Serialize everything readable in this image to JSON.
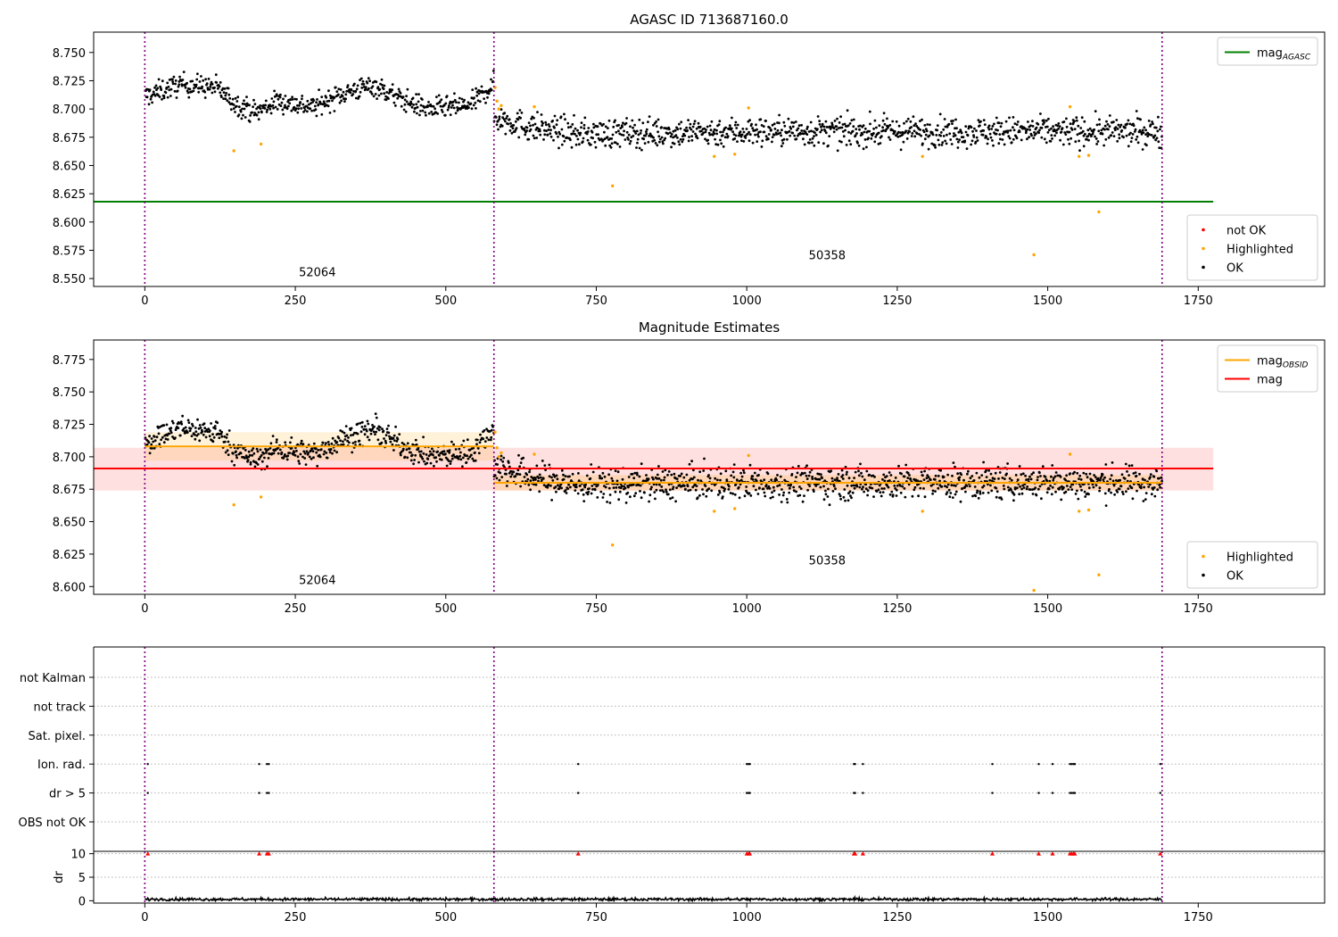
{
  "figure": {
    "title": "AGASC ID 713687160.0"
  },
  "colors": {
    "ok": "#000000",
    "highlighted": "#ffa500",
    "not_ok": "#ff0000",
    "mag_agasc": "#008000",
    "mag": "#ff0000",
    "mag_obsid": "#ffa500",
    "obs_boundary": "#800080",
    "gridline": "#b0b0b0"
  },
  "chart_data": [
    {
      "id": "agasc",
      "type": "scatter",
      "title": "AGASC ID 713687160.0",
      "xlim": [
        -85,
        1960
      ],
      "ylim": [
        8.543,
        8.768
      ],
      "xticks": [
        0,
        250,
        500,
        750,
        1000,
        1250,
        1500,
        1750
      ],
      "yticks": [
        8.55,
        8.575,
        8.6,
        8.625,
        8.65,
        8.675,
        8.7,
        8.725,
        8.75
      ],
      "obs_boundaries": [
        0,
        580,
        1690
      ],
      "obs_labels": [
        {
          "text": "52064",
          "x": 256,
          "y": 8.552
        },
        {
          "text": "50358",
          "x": 1103,
          "y": 8.567
        }
      ],
      "lines": [
        {
          "name": "mag",
          "sub": "AGASC",
          "y": 8.618,
          "x": [
            -85,
            1775
          ],
          "color": "#008000"
        }
      ],
      "ok_segments": [
        {
          "x": [
            0,
            580
          ],
          "profile": [
            [
              0,
              8.711
            ],
            [
              60,
              8.722
            ],
            [
              120,
              8.719
            ],
            [
              150,
              8.705
            ],
            [
              185,
              8.697
            ],
            [
              220,
              8.707
            ],
            [
              280,
              8.702
            ],
            [
              330,
              8.714
            ],
            [
              380,
              8.721
            ],
            [
              420,
              8.71
            ],
            [
              470,
              8.7
            ],
            [
              540,
              8.703
            ],
            [
              580,
              8.722
            ]
          ],
          "noise": 0.006
        },
        {
          "x": [
            580,
            1690
          ],
          "profile": [
            [
              580,
              8.693
            ],
            [
              640,
              8.684
            ],
            [
              720,
              8.678
            ],
            [
              1000,
              8.68
            ],
            [
              1690,
              8.68
            ]
          ],
          "noise": 0.008
        }
      ],
      "highlighted": [
        [
          148,
          8.663
        ],
        [
          193,
          8.669
        ],
        [
          582,
          8.719
        ],
        [
          585,
          8.707
        ],
        [
          588,
          8.7
        ],
        [
          592,
          8.703
        ],
        [
          647,
          8.702
        ],
        [
          777,
          8.632
        ],
        [
          946,
          8.658
        ],
        [
          980,
          8.66
        ],
        [
          1003,
          8.701
        ],
        [
          1292,
          8.658
        ],
        [
          1477,
          8.571
        ],
        [
          1537,
          8.702
        ],
        [
          1552,
          8.658
        ],
        [
          1568,
          8.659
        ],
        [
          1585,
          8.609
        ]
      ],
      "legends": [
        {
          "position": "upper-right",
          "entries": [
            {
              "label": "mag",
              "sub": "AGASC",
              "kind": "line",
              "color": "#008000"
            }
          ]
        },
        {
          "position": "lower-right",
          "entries": [
            {
              "label": "not OK",
              "kind": "dot",
              "color": "#ff0000"
            },
            {
              "label": "Highlighted",
              "kind": "dot",
              "color": "#ffa500"
            },
            {
              "label": "OK",
              "kind": "dot",
              "color": "#000000"
            }
          ]
        }
      ]
    },
    {
      "id": "estimates",
      "type": "scatter",
      "title": "Magnitude Estimates",
      "xlim": [
        -85,
        1960
      ],
      "ylim": [
        8.594,
        8.79
      ],
      "xticks": [
        0,
        250,
        500,
        750,
        1000,
        1250,
        1500,
        1750
      ],
      "yticks": [
        8.6,
        8.625,
        8.65,
        8.675,
        8.7,
        8.725,
        8.75,
        8.775
      ],
      "obs_boundaries": [
        0,
        580,
        1690
      ],
      "obs_labels": [
        {
          "text": "52064",
          "x": 256,
          "y": 8.602
        },
        {
          "text": "50358",
          "x": 1103,
          "y": 8.617
        }
      ],
      "bands": [
        {
          "x": [
            -85,
            1775
          ],
          "y": [
            8.674,
            8.707
          ],
          "color": "#ff0000",
          "opacity": 0.12
        },
        {
          "x": [
            0,
            580
          ],
          "y": [
            8.697,
            8.719
          ],
          "color": "#ffa500",
          "opacity": 0.15
        },
        {
          "x": [
            580,
            1690
          ],
          "y": [
            8.674,
            8.686
          ],
          "color": "#ffa500",
          "opacity": 0.18
        }
      ],
      "lines": [
        {
          "name": "mag",
          "y": 8.691,
          "x": [
            -85,
            1775
          ],
          "color": "#ff0000"
        },
        {
          "name": "mag",
          "sub": "OBSID",
          "y": 8.708,
          "x": [
            0,
            580
          ],
          "color": "#ffa500"
        },
        {
          "name": "mag",
          "sub": "OBSID",
          "y": 8.68,
          "x": [
            580,
            1690
          ],
          "color": "#ffa500"
        }
      ],
      "ok_segments": [
        {
          "x": [
            0,
            580
          ],
          "profile": [
            [
              0,
              8.711
            ],
            [
              60,
              8.722
            ],
            [
              120,
              8.719
            ],
            [
              150,
              8.705
            ],
            [
              185,
              8.697
            ],
            [
              220,
              8.707
            ],
            [
              280,
              8.702
            ],
            [
              330,
              8.714
            ],
            [
              380,
              8.721
            ],
            [
              420,
              8.71
            ],
            [
              470,
              8.7
            ],
            [
              540,
              8.703
            ],
            [
              580,
              8.722
            ]
          ],
          "noise": 0.006
        },
        {
          "x": [
            580,
            1690
          ],
          "profile": [
            [
              580,
              8.693
            ],
            [
              640,
              8.684
            ],
            [
              720,
              8.678
            ],
            [
              1000,
              8.68
            ],
            [
              1690,
              8.68
            ]
          ],
          "noise": 0.008
        }
      ],
      "highlighted": [
        [
          148,
          8.663
        ],
        [
          193,
          8.669
        ],
        [
          582,
          8.719
        ],
        [
          585,
          8.707
        ],
        [
          588,
          8.7
        ],
        [
          592,
          8.703
        ],
        [
          647,
          8.702
        ],
        [
          777,
          8.632
        ],
        [
          946,
          8.658
        ],
        [
          980,
          8.66
        ],
        [
          1003,
          8.701
        ],
        [
          1292,
          8.658
        ],
        [
          1477,
          8.597
        ],
        [
          1537,
          8.702
        ],
        [
          1552,
          8.658
        ],
        [
          1568,
          8.659
        ],
        [
          1585,
          8.609
        ]
      ],
      "legends": [
        {
          "position": "upper-right",
          "entries": [
            {
              "label": "mag",
              "sub": "OBSID",
              "kind": "line",
              "color": "#ffa500"
            },
            {
              "label": "mag",
              "kind": "line",
              "color": "#ff0000"
            }
          ]
        },
        {
          "position": "lower-right",
          "entries": [
            {
              "label": "Highlighted",
              "kind": "dot",
              "color": "#ffa500"
            },
            {
              "label": "OK",
              "kind": "dot",
              "color": "#000000"
            }
          ]
        }
      ]
    },
    {
      "id": "flags",
      "type": "scatter",
      "xlim": [
        -85,
        1960
      ],
      "categories": [
        "not Kalman",
        "not track",
        "Sat. pixel.",
        "Ion. rad.",
        "dr > 5",
        "OBS not OK"
      ],
      "obs_boundaries": [
        0,
        580,
        1690
      ],
      "flag_points": {
        "Ion. rad.": [
          5,
          190,
          203,
          206,
          720,
          1000,
          1003,
          1005,
          1178,
          1180,
          1193,
          1408,
          1485,
          1508,
          1537,
          1540,
          1543,
          1545,
          1687
        ],
        "dr > 5": [
          5,
          190,
          203,
          206,
          720,
          1000,
          1003,
          1005,
          1178,
          1180,
          1193,
          1408,
          1485,
          1508,
          1537,
          1540,
          1543,
          1545,
          1687
        ]
      }
    },
    {
      "id": "dr",
      "type": "scatter",
      "ylabel": "dr",
      "xlim": [
        -85,
        1960
      ],
      "ylim": [
        -0.5,
        10.5
      ],
      "xticks": [
        0,
        250,
        500,
        750,
        1000,
        1250,
        1500,
        1750
      ],
      "yticks": [
        0,
        5,
        10
      ],
      "obs_boundaries": [
        0,
        580,
        1690
      ],
      "dr_range": [
        0,
        1690
      ],
      "dr_level": 0.3,
      "clipped_points": [
        5,
        190,
        203,
        206,
        720,
        1000,
        1003,
        1005,
        1178,
        1180,
        1193,
        1408,
        1485,
        1508,
        1537,
        1540,
        1543,
        1545,
        1687
      ]
    }
  ]
}
